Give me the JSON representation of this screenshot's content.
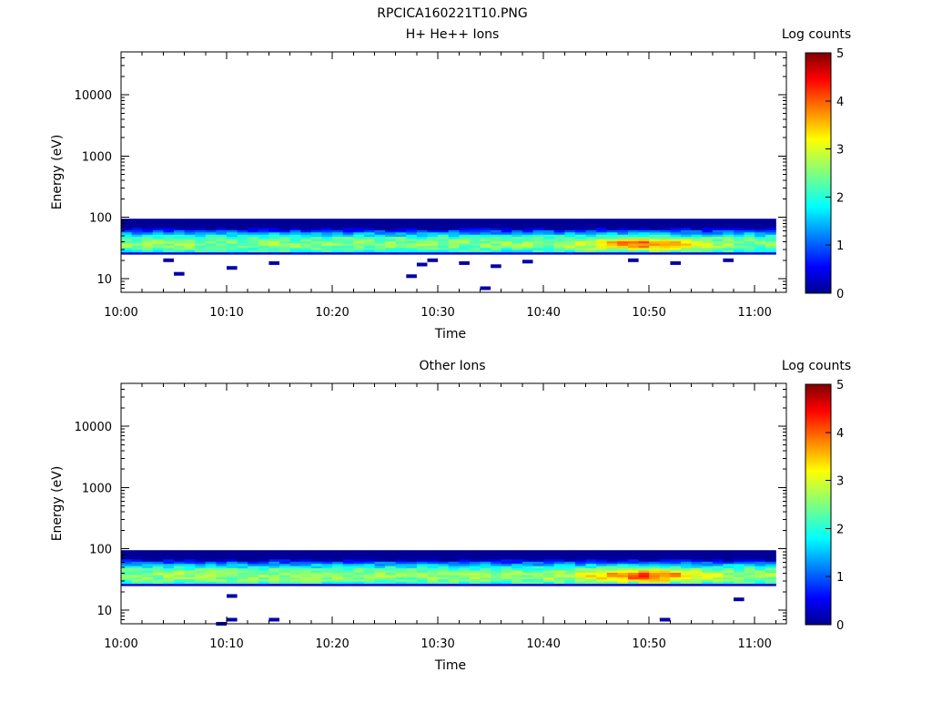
{
  "figure_title": "RPCICA160221T10.PNG",
  "colorbar": {
    "label": "Log counts",
    "ticks": [
      "0",
      "1",
      "2",
      "3",
      "4",
      "5"
    ],
    "range": [
      0,
      5
    ],
    "colormap": "jet"
  },
  "chart_data": [
    {
      "type": "heatmap",
      "title": "H+ He++ Ions",
      "xlabel": "Time",
      "ylabel": "Energy (eV)",
      "x_ticks": [
        "10:00",
        "10:10",
        "10:20",
        "10:30",
        "10:40",
        "10:50",
        "11:00"
      ],
      "x_range": [
        "10:00",
        "11:03"
      ],
      "y_scale": "log",
      "y_range": [
        6,
        50000
      ],
      "y_ticks": [
        "10",
        "100",
        "1000",
        "10000"
      ],
      "band_summary": {
        "energy_range_eV": [
          25,
          95
        ],
        "peak_energy_eV": 37,
        "typical_log_counts": 2.5,
        "max_log_counts": 3.9,
        "max_time": "10:49"
      },
      "isolated_points": [
        {
          "time": "10:04",
          "energy": 20,
          "log_counts": 0.2
        },
        {
          "time": "10:05",
          "energy": 12,
          "log_counts": 0.2
        },
        {
          "time": "10:10",
          "energy": 15,
          "log_counts": 0.2
        },
        {
          "time": "10:14",
          "energy": 18,
          "log_counts": 0.2
        },
        {
          "time": "10:27",
          "energy": 11,
          "log_counts": 0.2
        },
        {
          "time": "10:28",
          "energy": 17,
          "log_counts": 0.2
        },
        {
          "time": "10:29",
          "energy": 20,
          "log_counts": 0.2
        },
        {
          "time": "10:32",
          "energy": 18,
          "log_counts": 0.2
        },
        {
          "time": "10:34",
          "energy": 7,
          "log_counts": 0.2
        },
        {
          "time": "10:35",
          "energy": 16,
          "log_counts": 0.2
        },
        {
          "time": "10:38",
          "energy": 19,
          "log_counts": 0.2
        },
        {
          "time": "10:48",
          "energy": 20,
          "log_counts": 0.2
        },
        {
          "time": "10:52",
          "energy": 18,
          "log_counts": 0.2
        },
        {
          "time": "10:57",
          "energy": 20,
          "log_counts": 0.2
        }
      ]
    },
    {
      "type": "heatmap",
      "title": "Other Ions",
      "xlabel": "Time",
      "ylabel": "Energy (eV)",
      "x_ticks": [
        "10:00",
        "10:10",
        "10:20",
        "10:30",
        "10:40",
        "10:50",
        "11:00"
      ],
      "x_range": [
        "10:00",
        "11:03"
      ],
      "y_scale": "log",
      "y_range": [
        6,
        50000
      ],
      "y_ticks": [
        "10",
        "100",
        "1000",
        "10000"
      ],
      "band_summary": {
        "energy_range_eV": [
          25,
          95
        ],
        "peak_energy_eV": 37,
        "typical_log_counts": 2.6,
        "max_log_counts": 4.1,
        "max_time": "10:49"
      },
      "isolated_points": [
        {
          "time": "10:09",
          "energy": 6,
          "log_counts": 0.2
        },
        {
          "time": "10:10",
          "energy": 7,
          "log_counts": 0.2
        },
        {
          "time": "10:10",
          "energy": 17,
          "log_counts": 0.2
        },
        {
          "time": "10:14",
          "energy": 7,
          "log_counts": 0.2
        },
        {
          "time": "10:51",
          "energy": 7,
          "log_counts": 0.2
        },
        {
          "time": "10:58",
          "energy": 15,
          "log_counts": 0.2
        }
      ]
    }
  ]
}
